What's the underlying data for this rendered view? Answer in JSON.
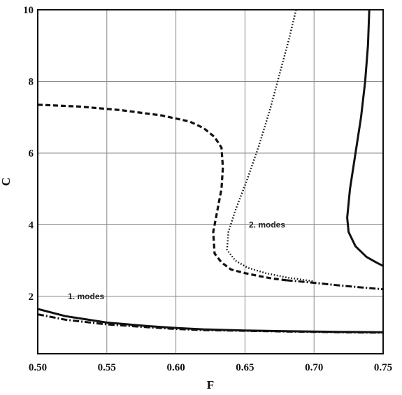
{
  "chart_data": {
    "type": "line",
    "xlabel": "F",
    "ylabel": "C",
    "xlim": [
      0.5,
      0.75
    ],
    "ylim": [
      0.4,
      10
    ],
    "x_ticks": [
      "0.50",
      "0.55",
      "0.60",
      "0.65",
      "0.70",
      "0.75"
    ],
    "y_ticks": [
      "2",
      "4",
      "6",
      "8",
      "10"
    ],
    "grid": true,
    "annotations": [
      {
        "text": "1. modes",
        "x": 0.535,
        "y": 2.0
      },
      {
        "text": "2. modes",
        "x": 0.666,
        "y": 4.0
      }
    ],
    "series": [
      {
        "style": "solid",
        "points": [
          [
            0.5,
            1.65
          ],
          [
            0.52,
            1.45
          ],
          [
            0.55,
            1.27
          ],
          [
            0.58,
            1.17
          ],
          [
            0.6,
            1.12
          ],
          [
            0.62,
            1.08
          ],
          [
            0.65,
            1.05
          ],
          [
            0.68,
            1.03
          ],
          [
            0.7,
            1.02
          ],
          [
            0.72,
            1.01
          ],
          [
            0.75,
            1.0
          ]
        ]
      },
      {
        "style": "dash-dot",
        "points": [
          [
            0.5,
            1.5
          ],
          [
            0.52,
            1.35
          ],
          [
            0.55,
            1.22
          ],
          [
            0.58,
            1.14
          ],
          [
            0.6,
            1.09
          ],
          [
            0.62,
            1.06
          ],
          [
            0.65,
            1.04
          ],
          [
            0.68,
            1.02
          ],
          [
            0.7,
            1.01
          ],
          [
            0.72,
            1.0
          ],
          [
            0.75,
            0.99
          ]
        ]
      },
      {
        "style": "dashed",
        "points": [
          [
            0.5,
            7.35
          ],
          [
            0.53,
            7.3
          ],
          [
            0.56,
            7.2
          ],
          [
            0.59,
            7.05
          ],
          [
            0.61,
            6.88
          ],
          [
            0.62,
            6.7
          ],
          [
            0.628,
            6.45
          ],
          [
            0.633,
            6.15
          ],
          [
            0.634,
            5.6
          ],
          [
            0.633,
            5.0
          ],
          [
            0.63,
            4.4
          ],
          [
            0.627,
            3.8
          ],
          [
            0.628,
            3.2
          ],
          [
            0.633,
            2.95
          ],
          [
            0.64,
            2.75
          ],
          [
            0.65,
            2.65
          ],
          [
            0.66,
            2.57
          ],
          [
            0.67,
            2.5
          ],
          [
            0.68,
            2.45
          ]
        ]
      },
      {
        "style": "dotted",
        "points": [
          [
            0.687,
            10.0
          ],
          [
            0.682,
            9.2
          ],
          [
            0.675,
            8.2
          ],
          [
            0.668,
            7.2
          ],
          [
            0.66,
            6.2
          ],
          [
            0.651,
            5.2
          ],
          [
            0.643,
            4.4
          ],
          [
            0.638,
            3.8
          ],
          [
            0.637,
            3.3
          ],
          [
            0.643,
            3.0
          ],
          [
            0.652,
            2.8
          ],
          [
            0.665,
            2.65
          ],
          [
            0.68,
            2.53
          ],
          [
            0.7,
            2.42
          ]
        ]
      },
      {
        "style": "dash-dot",
        "points": [
          [
            0.68,
            2.45
          ],
          [
            0.7,
            2.38
          ],
          [
            0.72,
            2.3
          ],
          [
            0.735,
            2.25
          ],
          [
            0.75,
            2.2
          ]
        ]
      },
      {
        "style": "solid",
        "points": [
          [
            0.74,
            10.0
          ],
          [
            0.739,
            9.0
          ],
          [
            0.737,
            8.0
          ],
          [
            0.734,
            7.0
          ],
          [
            0.73,
            6.0
          ],
          [
            0.726,
            5.0
          ],
          [
            0.724,
            4.2
          ],
          [
            0.725,
            3.8
          ],
          [
            0.73,
            3.4
          ],
          [
            0.738,
            3.1
          ],
          [
            0.745,
            2.95
          ],
          [
            0.75,
            2.85
          ]
        ]
      }
    ]
  }
}
